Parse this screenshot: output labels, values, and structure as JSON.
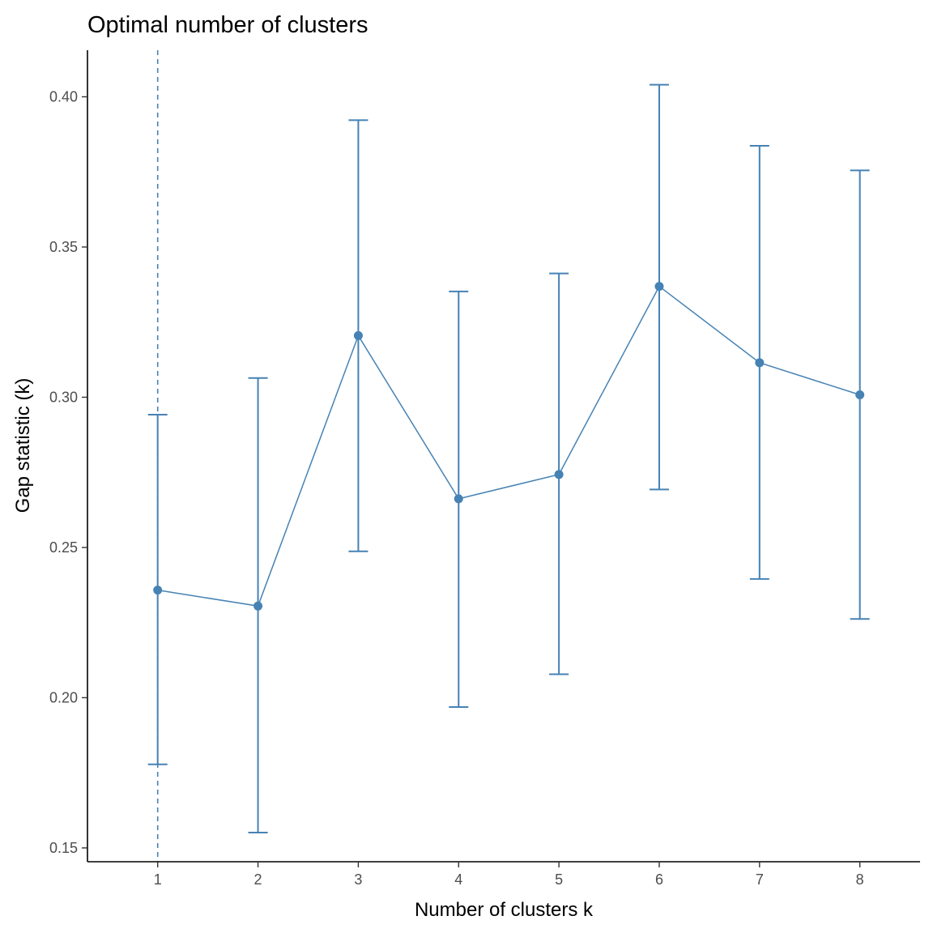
{
  "chart_data": {
    "type": "line",
    "title": "Optimal number of clusters",
    "xlabel": "Number of clusters k",
    "ylabel": "Gap statistic (k)",
    "x": [
      1,
      2,
      3,
      4,
      5,
      6,
      7,
      8
    ],
    "series": [
      {
        "values": [
          0.2358,
          0.2305,
          0.3205,
          0.2662,
          0.2743,
          0.3369,
          0.3115,
          0.3008
        ],
        "error_lower": [
          0.1778,
          0.1551,
          0.2487,
          0.1969,
          0.2078,
          0.2693,
          0.2395,
          0.2262
        ],
        "error_upper": [
          0.2942,
          0.3064,
          0.3922,
          0.3352,
          0.3412,
          0.404,
          0.3837,
          0.3755
        ]
      }
    ],
    "optimal_k": 1,
    "xlim": [
      0.3,
      8.6
    ],
    "ylim": [
      0.1454,
      0.4155
    ],
    "xticks": [
      "1",
      "2",
      "3",
      "4",
      "5",
      "6",
      "7",
      "8"
    ],
    "yticks": [
      "0.15",
      "0.20",
      "0.25",
      "0.30",
      "0.35",
      "0.40"
    ],
    "grid": false,
    "colors": {
      "series": "#4682b4",
      "axis": "#000000"
    }
  }
}
